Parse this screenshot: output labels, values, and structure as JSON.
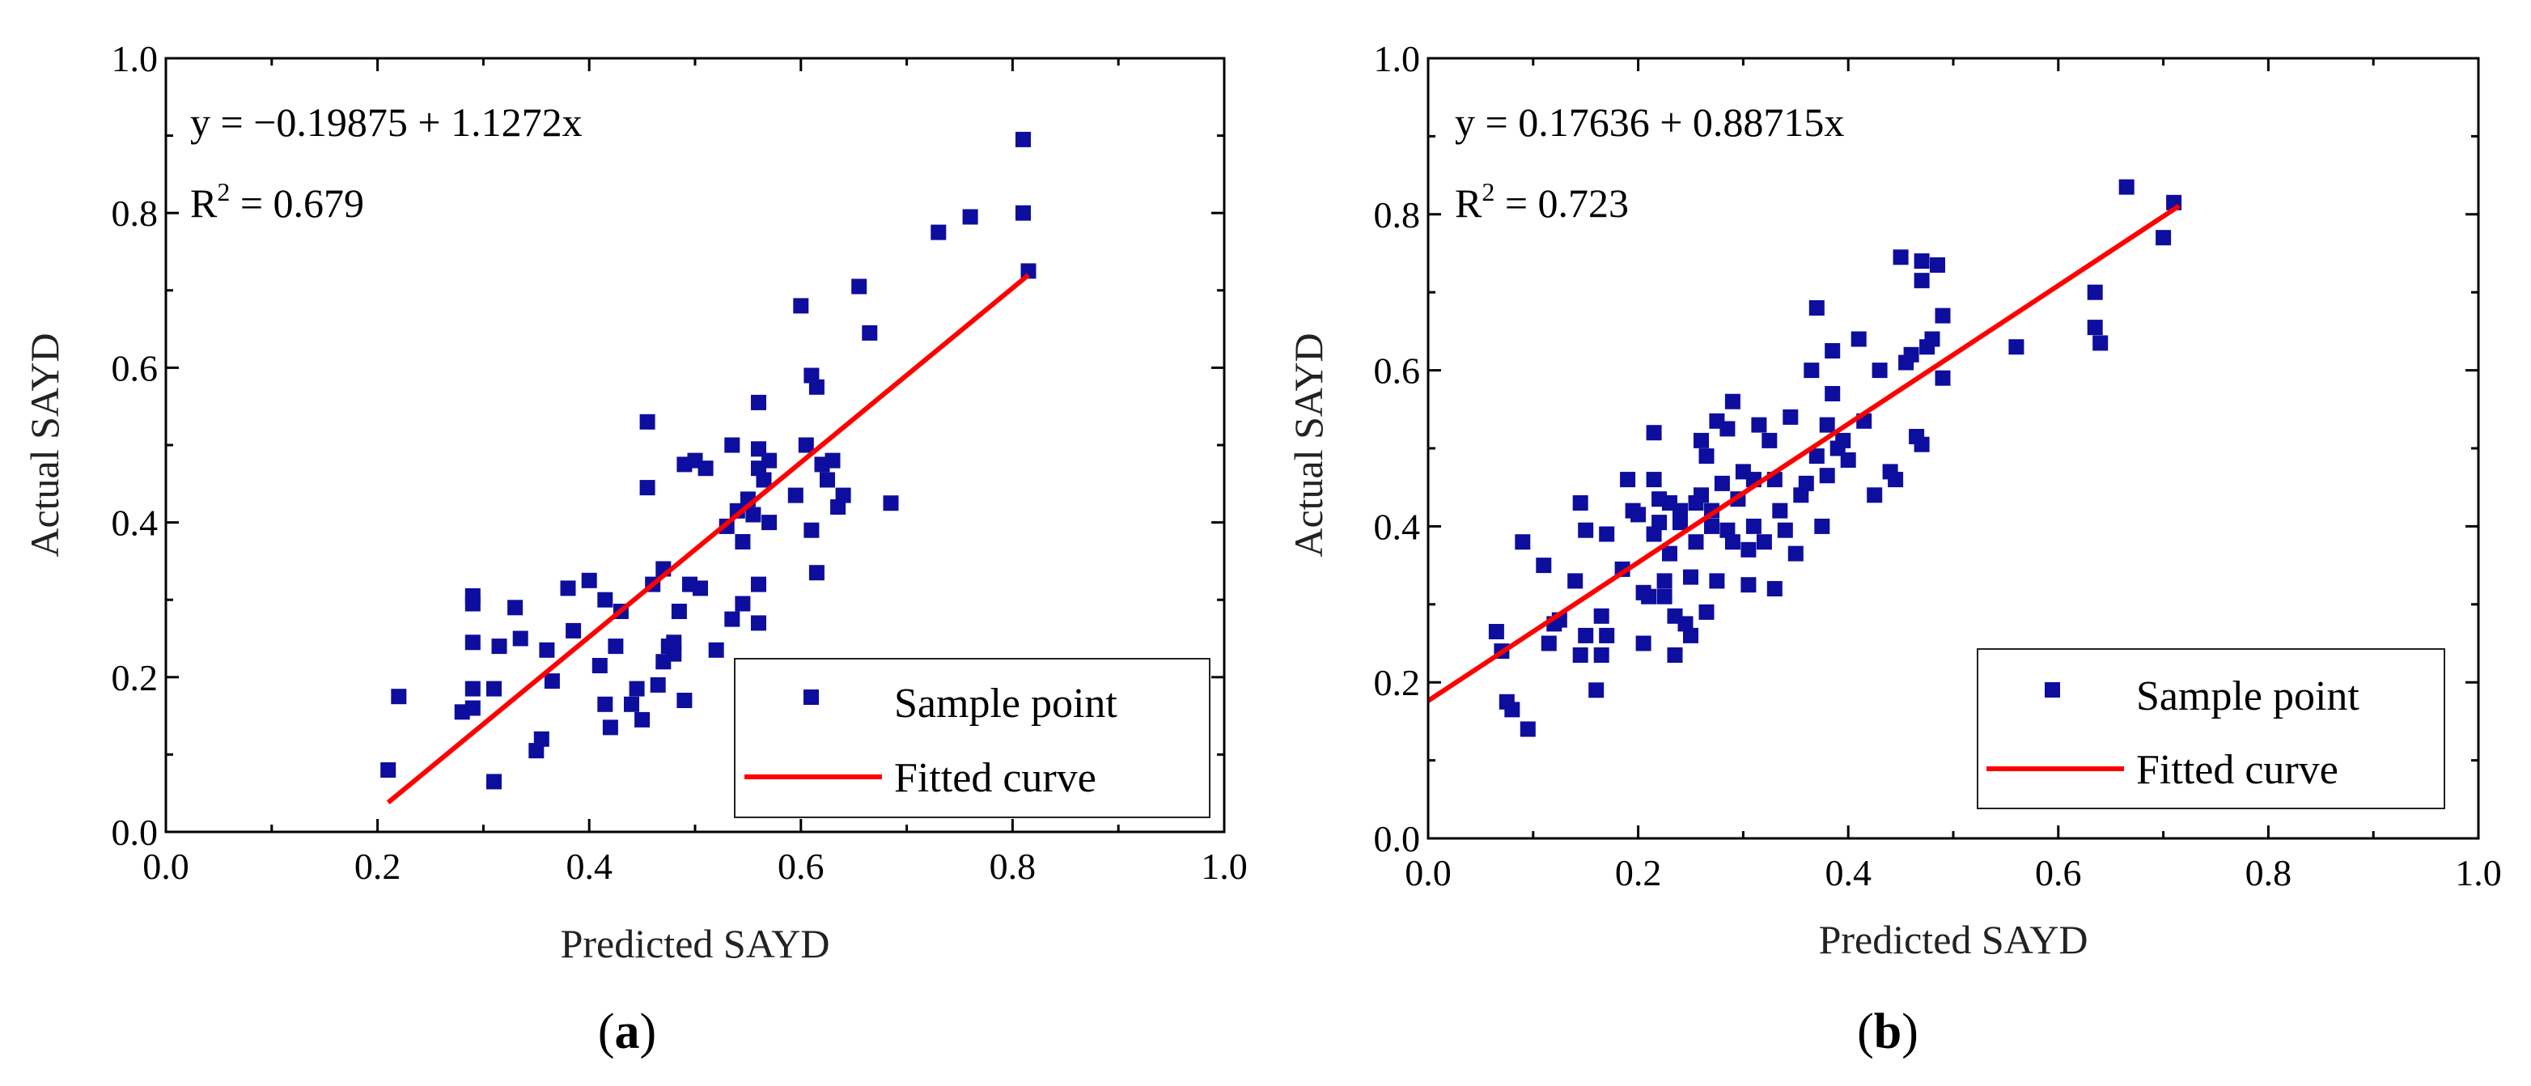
{
  "colors": {
    "marker": "#0d0d9e",
    "fit_line": "#ff0000",
    "axis": "#000000",
    "background": "#ffffff"
  },
  "chart_data": [
    {
      "type": "scatter",
      "panel_label": "a",
      "xlabel": "Predicted SAYD",
      "ylabel": "Actual SAYD",
      "xlim": [
        0.0,
        1.0
      ],
      "ylim": [
        0.0,
        1.0
      ],
      "xticks": [
        "0.0",
        "0.2",
        "0.4",
        "0.6",
        "0.8",
        "1.0"
      ],
      "yticks": [
        "0.0",
        "0.2",
        "0.4",
        "0.6",
        "0.8",
        "1.0"
      ],
      "equation": "y = −0.19875 + 1.1272x",
      "r2_prefix": "R",
      "r2_exp": "2",
      "r2_suffix": " = 0.679",
      "fit": {
        "intercept": -0.19875,
        "slope": 1.1272,
        "x_range": [
          0.21,
          0.815
        ]
      },
      "legend": {
        "position": "bottom-right",
        "points_label": "Sample point",
        "line_label": "Fitted curve"
      },
      "series": [
        {
          "name": "Sample point",
          "points": [
            [
              0.21,
              0.08
            ],
            [
              0.22,
              0.175
            ],
            [
              0.28,
              0.155
            ],
            [
              0.29,
              0.16
            ],
            [
              0.29,
              0.185
            ],
            [
              0.29,
              0.245
            ],
            [
              0.29,
              0.295
            ],
            [
              0.29,
              0.305
            ],
            [
              0.31,
              0.065
            ],
            [
              0.31,
              0.185
            ],
            [
              0.315,
              0.24
            ],
            [
              0.33,
              0.29
            ],
            [
              0.335,
              0.25
            ],
            [
              0.35,
              0.105
            ],
            [
              0.355,
              0.12
            ],
            [
              0.36,
              0.235
            ],
            [
              0.365,
              0.195
            ],
            [
              0.38,
              0.315
            ],
            [
              0.385,
              0.26
            ],
            [
              0.4,
              0.325
            ],
            [
              0.41,
              0.215
            ],
            [
              0.415,
              0.165
            ],
            [
              0.415,
              0.3
            ],
            [
              0.42,
              0.135
            ],
            [
              0.425,
              0.24
            ],
            [
              0.43,
              0.285
            ],
            [
              0.44,
              0.165
            ],
            [
              0.445,
              0.185
            ],
            [
              0.45,
              0.145
            ],
            [
              0.455,
              0.53
            ],
            [
              0.455,
              0.445
            ],
            [
              0.46,
              0.32
            ],
            [
              0.465,
              0.19
            ],
            [
              0.47,
              0.22
            ],
            [
              0.47,
              0.34
            ],
            [
              0.475,
              0.24
            ],
            [
              0.48,
              0.245
            ],
            [
              0.48,
              0.23
            ],
            [
              0.485,
              0.285
            ],
            [
              0.49,
              0.17
            ],
            [
              0.49,
              0.475
            ],
            [
              0.495,
              0.32
            ],
            [
              0.5,
              0.48
            ],
            [
              0.505,
              0.315
            ],
            [
              0.51,
              0.47
            ],
            [
              0.52,
              0.235
            ],
            [
              0.53,
              0.395
            ],
            [
              0.535,
              0.5
            ],
            [
              0.535,
              0.275
            ],
            [
              0.54,
              0.415
            ],
            [
              0.545,
              0.375
            ],
            [
              0.545,
              0.295
            ],
            [
              0.55,
              0.43
            ],
            [
              0.555,
              0.41
            ],
            [
              0.56,
              0.555
            ],
            [
              0.56,
              0.495
            ],
            [
              0.56,
              0.47
            ],
            [
              0.56,
              0.32
            ],
            [
              0.56,
              0.27
            ],
            [
              0.565,
              0.455
            ],
            [
              0.57,
              0.4
            ],
            [
              0.57,
              0.48
            ],
            [
              0.595,
              0.435
            ],
            [
              0.6,
              0.68
            ],
            [
              0.605,
              0.5
            ],
            [
              0.61,
              0.59
            ],
            [
              0.61,
              0.39
            ],
            [
              0.615,
              0.575
            ],
            [
              0.615,
              0.335
            ],
            [
              0.62,
              0.475
            ],
            [
              0.625,
              0.455
            ],
            [
              0.63,
              0.48
            ],
            [
              0.635,
              0.42
            ],
            [
              0.64,
              0.435
            ],
            [
              0.655,
              0.705
            ],
            [
              0.665,
              0.645
            ],
            [
              0.685,
              0.425
            ],
            [
              0.73,
              0.775
            ],
            [
              0.76,
              0.795
            ],
            [
              0.81,
              0.895
            ],
            [
              0.81,
              0.8
            ],
            [
              0.815,
              0.725
            ]
          ]
        }
      ]
    },
    {
      "type": "scatter",
      "panel_label": "b",
      "xlabel": "Predicted SAYD",
      "ylabel": "Actual SAYD",
      "xlim": [
        0.0,
        1.0
      ],
      "ylim": [
        0.0,
        1.0
      ],
      "xticks": [
        "0.0",
        "0.2",
        "0.4",
        "0.6",
        "0.8",
        "1.0"
      ],
      "yticks": [
        "0.0",
        "0.2",
        "0.4",
        "0.6",
        "0.8",
        "1.0"
      ],
      "equation": "y = 0.17636 + 0.88715x",
      "r2_prefix": "R",
      "r2_exp": "2",
      "r2_suffix": " = 0.723",
      "fit": {
        "intercept": 0.17636,
        "slope": 0.88715,
        "x_range": [
          0.0,
          0.715
        ]
      },
      "legend": {
        "position": "bottom-right",
        "points_label": "Sample point",
        "line_label": "Fitted curve"
      },
      "series": [
        {
          "name": "Sample point",
          "points": [
            [
              0.065,
              0.265
            ],
            [
              0.07,
              0.24
            ],
            [
              0.075,
              0.175
            ],
            [
              0.08,
              0.165
            ],
            [
              0.09,
              0.38
            ],
            [
              0.095,
              0.14
            ],
            [
              0.11,
              0.35
            ],
            [
              0.115,
              0.25
            ],
            [
              0.12,
              0.275
            ],
            [
              0.125,
              0.28
            ],
            [
              0.14,
              0.33
            ],
            [
              0.145,
              0.235
            ],
            [
              0.145,
              0.43
            ],
            [
              0.15,
              0.395
            ],
            [
              0.15,
              0.26
            ],
            [
              0.16,
              0.19
            ],
            [
              0.165,
              0.235
            ],
            [
              0.165,
              0.285
            ],
            [
              0.17,
              0.26
            ],
            [
              0.17,
              0.39
            ],
            [
              0.185,
              0.345
            ],
            [
              0.19,
              0.46
            ],
            [
              0.195,
              0.42
            ],
            [
              0.2,
              0.415
            ],
            [
              0.205,
              0.25
            ],
            [
              0.205,
              0.315
            ],
            [
              0.21,
              0.31
            ],
            [
              0.215,
              0.39
            ],
            [
              0.215,
              0.46
            ],
            [
              0.215,
              0.52
            ],
            [
              0.22,
              0.405
            ],
            [
              0.22,
              0.435
            ],
            [
              0.225,
              0.33
            ],
            [
              0.225,
              0.31
            ],
            [
              0.23,
              0.43
            ],
            [
              0.23,
              0.365
            ],
            [
              0.235,
              0.285
            ],
            [
              0.235,
              0.235
            ],
            [
              0.24,
              0.405
            ],
            [
              0.24,
              0.42
            ],
            [
              0.245,
              0.275
            ],
            [
              0.25,
              0.26
            ],
            [
              0.25,
              0.335
            ],
            [
              0.255,
              0.38
            ],
            [
              0.255,
              0.43
            ],
            [
              0.26,
              0.44
            ],
            [
              0.26,
              0.51
            ],
            [
              0.265,
              0.29
            ],
            [
              0.265,
              0.49
            ],
            [
              0.27,
              0.4
            ],
            [
              0.27,
              0.42
            ],
            [
              0.275,
              0.33
            ],
            [
              0.275,
              0.535
            ],
            [
              0.28,
              0.455
            ],
            [
              0.285,
              0.395
            ],
            [
              0.285,
              0.525
            ],
            [
              0.29,
              0.56
            ],
            [
              0.29,
              0.38
            ],
            [
              0.295,
              0.435
            ],
            [
              0.3,
              0.47
            ],
            [
              0.305,
              0.37
            ],
            [
              0.305,
              0.325
            ],
            [
              0.31,
              0.4
            ],
            [
              0.31,
              0.46
            ],
            [
              0.315,
              0.53
            ],
            [
              0.32,
              0.38
            ],
            [
              0.325,
              0.51
            ],
            [
              0.33,
              0.32
            ],
            [
              0.33,
              0.46
            ],
            [
              0.335,
              0.42
            ],
            [
              0.34,
              0.395
            ],
            [
              0.345,
              0.54
            ],
            [
              0.35,
              0.365
            ],
            [
              0.355,
              0.44
            ],
            [
              0.36,
              0.455
            ],
            [
              0.365,
              0.6
            ],
            [
              0.37,
              0.68
            ],
            [
              0.37,
              0.49
            ],
            [
              0.375,
              0.4
            ],
            [
              0.38,
              0.465
            ],
            [
              0.38,
              0.53
            ],
            [
              0.385,
              0.57
            ],
            [
              0.385,
              0.625
            ],
            [
              0.39,
              0.5
            ],
            [
              0.395,
              0.51
            ],
            [
              0.4,
              0.485
            ],
            [
              0.41,
              0.64
            ],
            [
              0.415,
              0.535
            ],
            [
              0.425,
              0.44
            ],
            [
              0.43,
              0.6
            ],
            [
              0.44,
              0.47
            ],
            [
              0.445,
              0.46
            ],
            [
              0.45,
              0.745
            ],
            [
              0.455,
              0.61
            ],
            [
              0.46,
              0.62
            ],
            [
              0.465,
              0.515
            ],
            [
              0.47,
              0.505
            ],
            [
              0.47,
              0.74
            ],
            [
              0.47,
              0.715
            ],
            [
              0.475,
              0.63
            ],
            [
              0.48,
              0.64
            ],
            [
              0.485,
              0.735
            ],
            [
              0.49,
              0.67
            ],
            [
              0.49,
              0.59
            ],
            [
              0.56,
              0.63
            ],
            [
              0.635,
              0.7
            ],
            [
              0.635,
              0.655
            ],
            [
              0.64,
              0.635
            ],
            [
              0.665,
              0.835
            ],
            [
              0.7,
              0.77
            ],
            [
              0.71,
              0.815
            ]
          ]
        }
      ]
    }
  ]
}
